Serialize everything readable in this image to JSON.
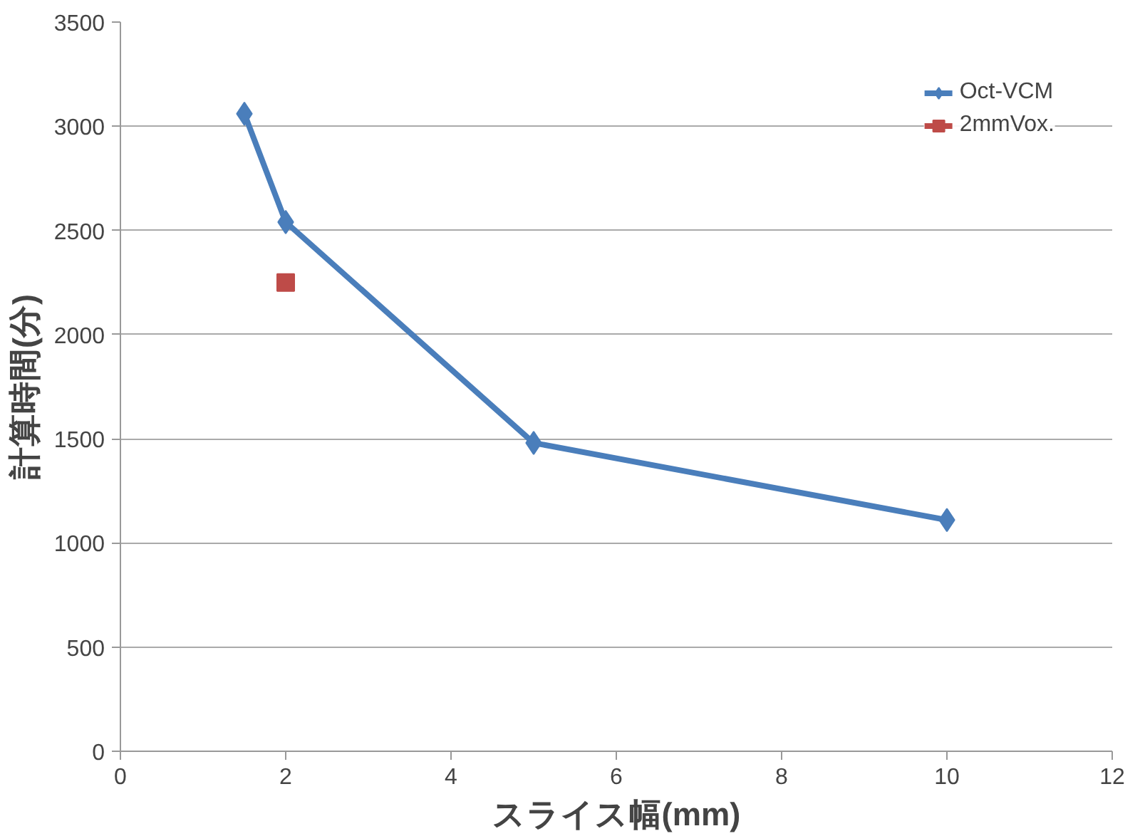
{
  "chart_data": {
    "type": "line",
    "xlabel": "スライス幅(mm)",
    "ylabel": "計算時間(分)",
    "xlim": [
      0,
      12
    ],
    "xticks": [
      0,
      2,
      4,
      6,
      8,
      10,
      12
    ],
    "ylim": [
      0,
      3500
    ],
    "yticks": [
      0,
      500,
      1000,
      1500,
      2000,
      2500,
      3000,
      3500
    ],
    "grid": "y",
    "legend": "top right",
    "series": [
      {
        "name": "Oct-VCM",
        "color": "#4a7ebb",
        "marker": "diamond",
        "x": [
          1.5,
          2,
          5,
          10
        ],
        "values": [
          3060,
          2540,
          1480,
          1110
        ]
      },
      {
        "name": "2mmVox.",
        "color": "#be4b48",
        "marker": "square",
        "x": [
          2
        ],
        "values": [
          2250
        ]
      }
    ]
  }
}
